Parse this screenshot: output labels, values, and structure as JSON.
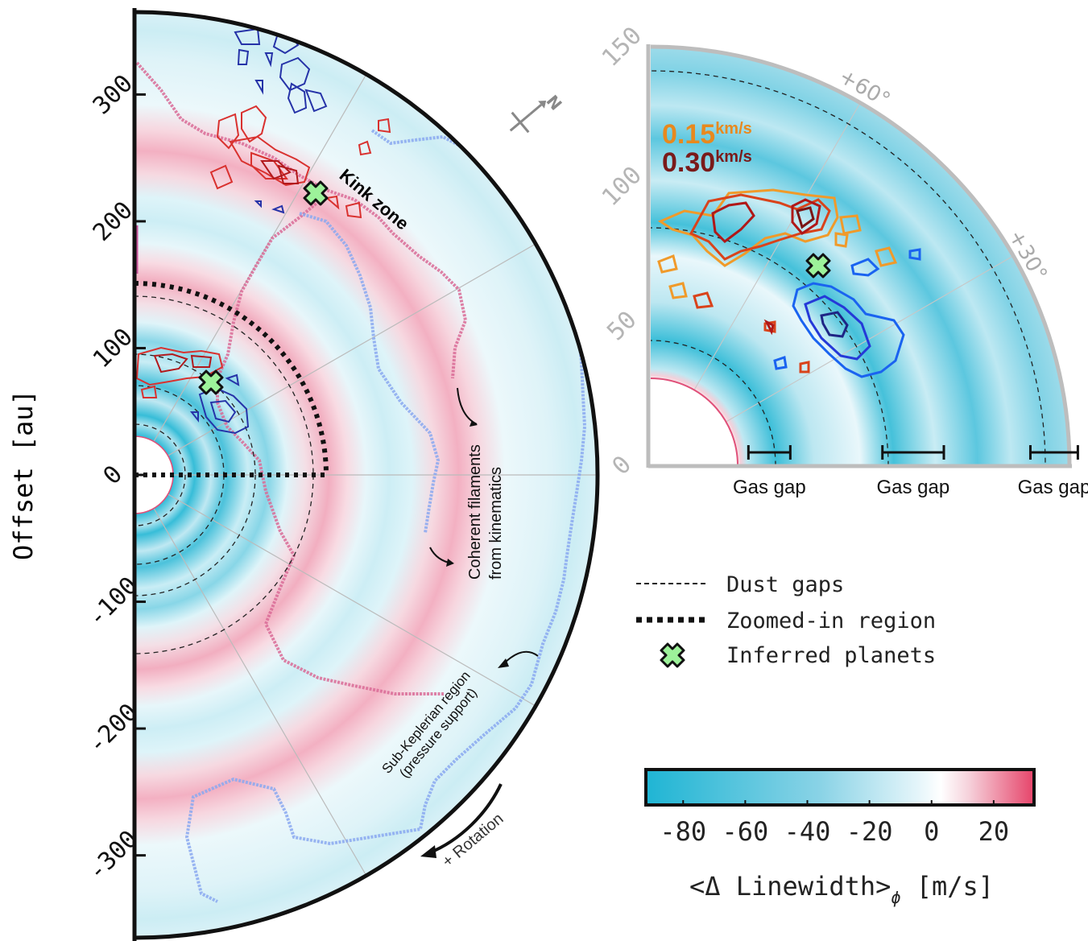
{
  "chart_data": {
    "type": "polar-map",
    "main_panel": {
      "ylabel": "Offset [au]",
      "yticks": [
        300,
        200,
        100,
        0,
        -100,
        -200,
        -300
      ],
      "ylim": [
        -345,
        365
      ],
      "disk_outer_radius_au": 365,
      "inner_hole_radius_au": 30,
      "dust_gap_radii_au": [
        40,
        70,
        95,
        140
      ],
      "zoom_radius_au": 150,
      "spoke_angles_deg": [
        -60,
        -30,
        0,
        30,
        60
      ],
      "annotations": {
        "kink_zone": "Kink zone",
        "filaments": "Coherent filaments\nfrom kinematics",
        "subkeplerian": "Sub-Keplerian region\n(pressure support)",
        "rotation": "+ Rotation",
        "north": "N"
      },
      "planets_au": [
        [
          140,
          222
        ],
        [
          60,
          72
        ]
      ]
    },
    "zoom_panel": {
      "rticks": [
        0,
        50,
        100,
        150
      ],
      "angle_labels": [
        "+60°",
        "+30°"
      ],
      "legend_values": [
        "0.15",
        "0.30"
      ],
      "legend_unit": "km/s",
      "legend_colors": [
        "#e8891e",
        "#7a1a1a"
      ],
      "gas_gap_label": "Gas gap",
      "gas_gaps_au": [
        [
          35,
          50
        ],
        [
          83,
          105
        ],
        [
          136,
          153
        ]
      ],
      "dust_gap_radii_au": [
        47,
        90,
        138
      ],
      "planet_au": [
        65,
        77
      ]
    },
    "legend": [
      {
        "style": "dashed",
        "label": "Dust gaps"
      },
      {
        "style": "dotted",
        "label": "Zoomed-in region"
      },
      {
        "style": "cross",
        "label": "Inferred planets"
      }
    ],
    "colorbar": {
      "label": "<Δ Linewidth>ϕ [m/s]",
      "label_main": "<Δ Linewidth>",
      "label_sub": "ϕ",
      "label_unit": " [m/s]",
      "ticks": [
        "-80",
        "-60",
        "-40",
        "-20",
        "0",
        "20"
      ],
      "range": [
        -92,
        33
      ],
      "colors": [
        "#1fb5d4",
        "#f5fbfd",
        "#e6446a"
      ]
    }
  }
}
